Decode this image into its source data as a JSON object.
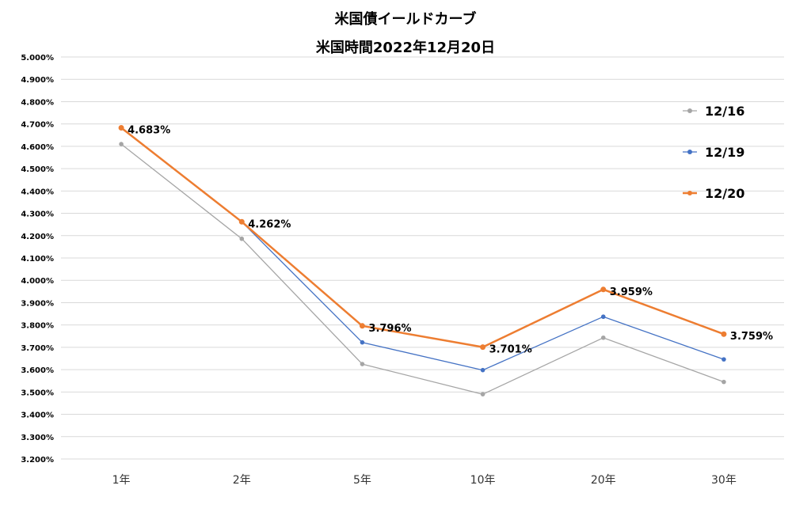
{
  "chart_data": {
    "type": "line",
    "title": "米国債イールドカーブ",
    "subtitle": "米国時間2022年12月20日",
    "xlabel": "",
    "ylabel": "",
    "categories": [
      "1年",
      "2年",
      "5年",
      "10年",
      "20年",
      "30年"
    ],
    "ylim": [
      3.2,
      5.0
    ],
    "ytick_step": 0.1,
    "ytick_format": "percent_3dp",
    "grid": true,
    "legend_position": "right",
    "series": [
      {
        "name": "12/16",
        "color": "#a5a5a5",
        "values": [
          4.61,
          4.186,
          3.625,
          3.49,
          3.743,
          3.545
        ],
        "show_labels": false,
        "line_width": 1.3
      },
      {
        "name": "12/19",
        "color": "#4472c4",
        "values": [
          4.683,
          4.262,
          3.722,
          3.598,
          3.837,
          3.646
        ],
        "show_labels": false,
        "line_width": 1.3
      },
      {
        "name": "12/20",
        "color": "#ed7d31",
        "values": [
          4.683,
          4.262,
          3.796,
          3.701,
          3.959,
          3.759
        ],
        "show_labels": true,
        "line_width": 2.5
      }
    ],
    "data_labels": [
      "4.683%",
      "4.262%",
      "3.796%",
      "3.701%",
      "3.959%",
      "3.759%"
    ]
  }
}
